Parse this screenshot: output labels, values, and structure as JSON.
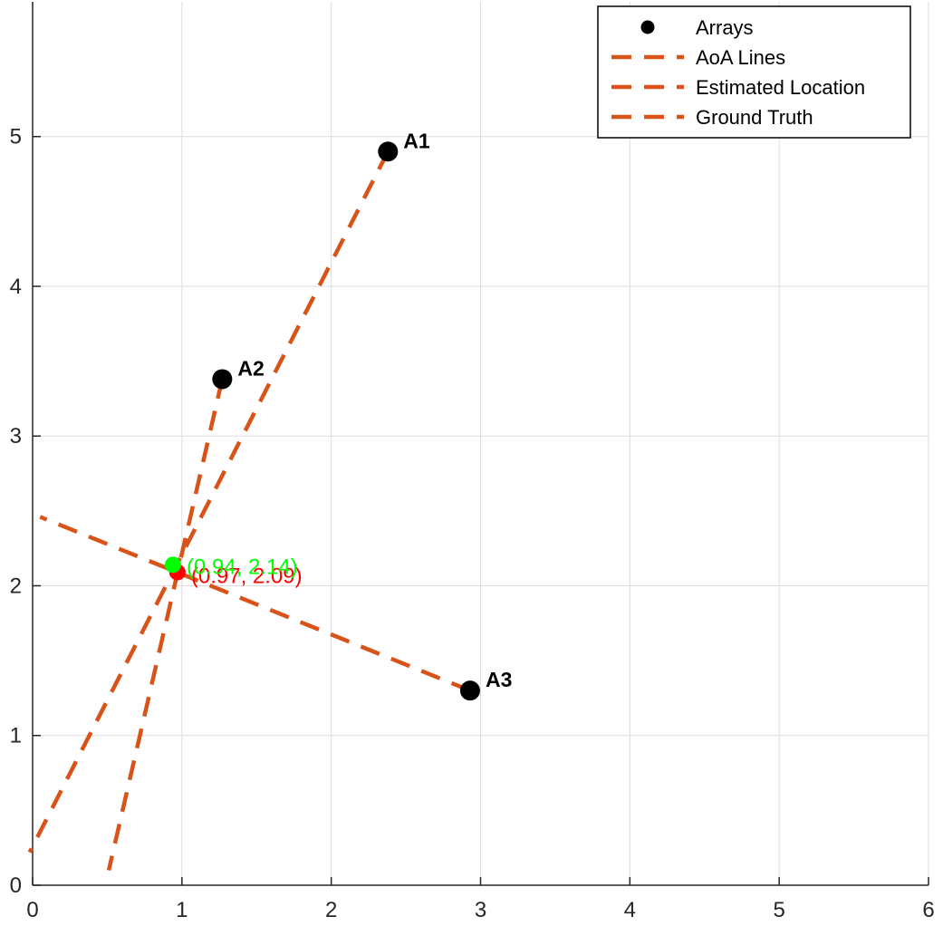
{
  "colors": {
    "aoa": "#d95319",
    "array": "#000000",
    "estimate": "#ff0000",
    "truth": "#00ff00",
    "grid": "#dddddd",
    "axis": "#262626"
  },
  "chart_data": {
    "type": "scatter",
    "xlim": [
      0,
      6
    ],
    "ylim": [
      0,
      5.9
    ],
    "xticks": [
      0,
      1,
      2,
      3,
      4,
      5,
      6
    ],
    "yticks": [
      0,
      1,
      2,
      3,
      4,
      5
    ],
    "grid": true,
    "legend_position": "top-right",
    "legend": [
      {
        "label": "Arrays",
        "marker": "dot"
      },
      {
        "label": "AoA Lines",
        "marker": "dashed-line"
      },
      {
        "label": "Estimated Location",
        "marker": "dashed-line"
      },
      {
        "label": "Ground Truth",
        "marker": "dashed-line"
      }
    ],
    "arrays": [
      {
        "name": "A1",
        "x": 2.38,
        "y": 4.9
      },
      {
        "name": "A2",
        "x": 1.27,
        "y": 3.38
      },
      {
        "name": "A3",
        "x": 2.93,
        "y": 1.3
      }
    ],
    "aoa_lines": [
      {
        "array": "A1",
        "x": [
          2.38,
          -0.02
        ],
        "y": [
          4.9,
          0.22
        ]
      },
      {
        "array": "A2",
        "x": [
          1.27,
          0.51
        ],
        "y": [
          3.38,
          0.1
        ]
      },
      {
        "array": "A3",
        "x": [
          2.93,
          0.05
        ],
        "y": [
          1.3,
          2.46
        ]
      }
    ],
    "estimated_location": {
      "x": 0.97,
      "y": 2.09,
      "label": "(0.97, 2.09)"
    },
    "ground_truth": {
      "x": 0.94,
      "y": 2.14,
      "label": "(0.94, 2.14)"
    }
  }
}
